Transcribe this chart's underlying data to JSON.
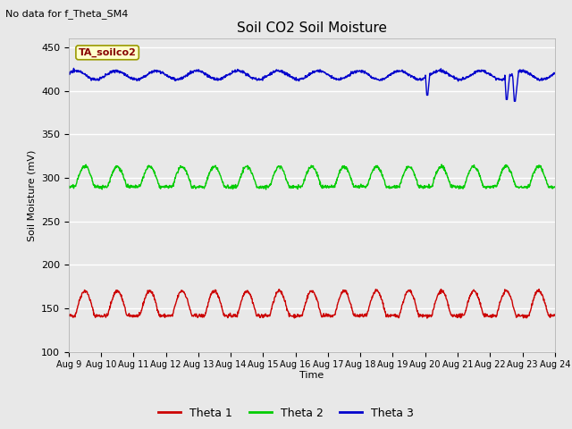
{
  "title": "Soil CO2 Soil Moisture",
  "ylabel": "Soil Moisture (mV)",
  "xlabel": "Time",
  "no_data_text": "No data for f_Theta_SM4",
  "annotation_text": "TA_soilco2",
  "annotation_color": "#880000",
  "annotation_bg": "#ffffcc",
  "annotation_border": "#999900",
  "ylim": [
    100,
    460
  ],
  "yticks": [
    100,
    150,
    200,
    250,
    300,
    350,
    400,
    450
  ],
  "x_tick_labels": [
    "Aug 9",
    "Aug 10",
    "Aug 11",
    "Aug 12",
    "Aug 13",
    "Aug 14",
    "Aug 15",
    "Aug 16",
    "Aug 17",
    "Aug 18",
    "Aug 19",
    "Aug 20",
    "Aug 21",
    "Aug 22",
    "Aug 23",
    "Aug 24"
  ],
  "bg_color": "#e8e8e8",
  "axes_bg_color": "#e8e8e8",
  "grid_color": "#ffffff",
  "theta1_color": "#cc0000",
  "theta2_color": "#00cc00",
  "theta3_color": "#0000cc",
  "legend_labels": [
    "Theta 1",
    "Theta 2",
    "Theta 3"
  ],
  "n_days": 15,
  "theta1_base": 148,
  "theta1_amp": 22,
  "theta2_base": 295,
  "theta2_amp": 18,
  "theta3_base": 418,
  "theta3_amp": 5
}
